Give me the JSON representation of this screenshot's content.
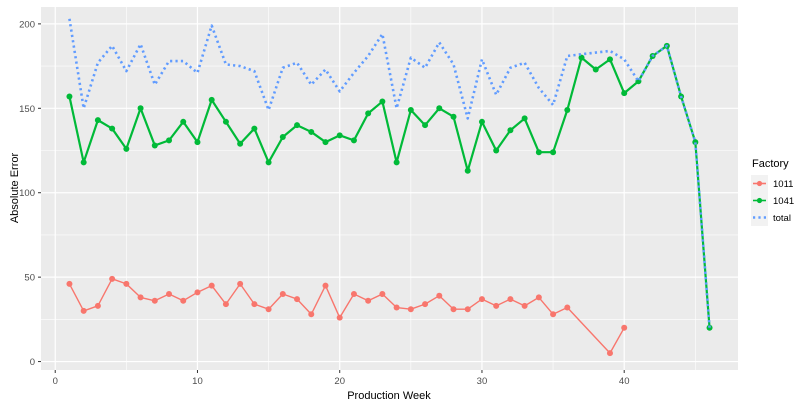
{
  "chart_data": {
    "type": "line",
    "title": "",
    "xlabel": "Production Week",
    "ylabel": "Absolute Error",
    "xlim": [
      -1,
      48
    ],
    "ylim": [
      -5,
      210
    ],
    "x_ticks": [
      0,
      10,
      20,
      30,
      40
    ],
    "y_ticks": [
      0,
      50,
      100,
      150,
      200
    ],
    "grid": true,
    "legend_title": "Factory",
    "legend_position": "right",
    "series": [
      {
        "name": "1011",
        "color": "#F8766D",
        "style": "solid-with-points",
        "x": [
          1,
          2,
          3,
          4,
          5,
          6,
          7,
          8,
          9,
          10,
          11,
          12,
          13,
          14,
          15,
          16,
          17,
          18,
          19,
          20,
          21,
          22,
          23,
          24,
          25,
          26,
          27,
          28,
          29,
          30,
          31,
          32,
          33,
          34,
          35,
          36,
          39,
          40
        ],
        "values": [
          46,
          30,
          33,
          49,
          46,
          38,
          36,
          40,
          36,
          41,
          45,
          34,
          46,
          34,
          31,
          40,
          37,
          28,
          45,
          26,
          40,
          36,
          40,
          32,
          31,
          34,
          39,
          31,
          31,
          37,
          33,
          37,
          33,
          38,
          28,
          32,
          5,
          20
        ]
      },
      {
        "name": "1041",
        "color": "#00BA38",
        "style": "solid-with-points",
        "x": [
          1,
          2,
          3,
          4,
          5,
          6,
          7,
          8,
          9,
          10,
          11,
          12,
          13,
          14,
          15,
          16,
          17,
          18,
          19,
          20,
          21,
          22,
          23,
          24,
          25,
          26,
          27,
          28,
          29,
          30,
          31,
          32,
          33,
          34,
          35,
          36,
          37,
          38,
          39,
          40,
          41,
          42,
          43,
          44,
          45,
          46
        ],
        "values": [
          157,
          118,
          143,
          138,
          126,
          150,
          128,
          131,
          142,
          130,
          155,
          142,
          129,
          138,
          118,
          133,
          140,
          136,
          130,
          134,
          131,
          147,
          154,
          118,
          149,
          140,
          150,
          145,
          113,
          142,
          125,
          137,
          144,
          124,
          124,
          149,
          180,
          173,
          179,
          159,
          166,
          181,
          187,
          157,
          130,
          20
        ]
      },
      {
        "name": "total",
        "color": "#619CFF",
        "style": "dotted",
        "x": [
          1,
          2,
          3,
          4,
          5,
          6,
          7,
          8,
          9,
          10,
          11,
          12,
          13,
          14,
          15,
          16,
          17,
          18,
          19,
          20,
          21,
          22,
          23,
          24,
          25,
          26,
          27,
          28,
          29,
          30,
          31,
          32,
          33,
          34,
          35,
          36,
          37,
          38,
          39,
          40,
          41,
          42,
          43,
          44,
          45,
          46
        ],
        "values": [
          203,
          150,
          177,
          187,
          172,
          188,
          164,
          178,
          178,
          171,
          199,
          176,
          175,
          172,
          149,
          174,
          177,
          164,
          173,
          160,
          171,
          181,
          194,
          150,
          180,
          174,
          189,
          176,
          144,
          179,
          158,
          174,
          177,
          162,
          152,
          181,
          182,
          183,
          184,
          179,
          166,
          181,
          187,
          157,
          130,
          20
        ]
      }
    ]
  }
}
